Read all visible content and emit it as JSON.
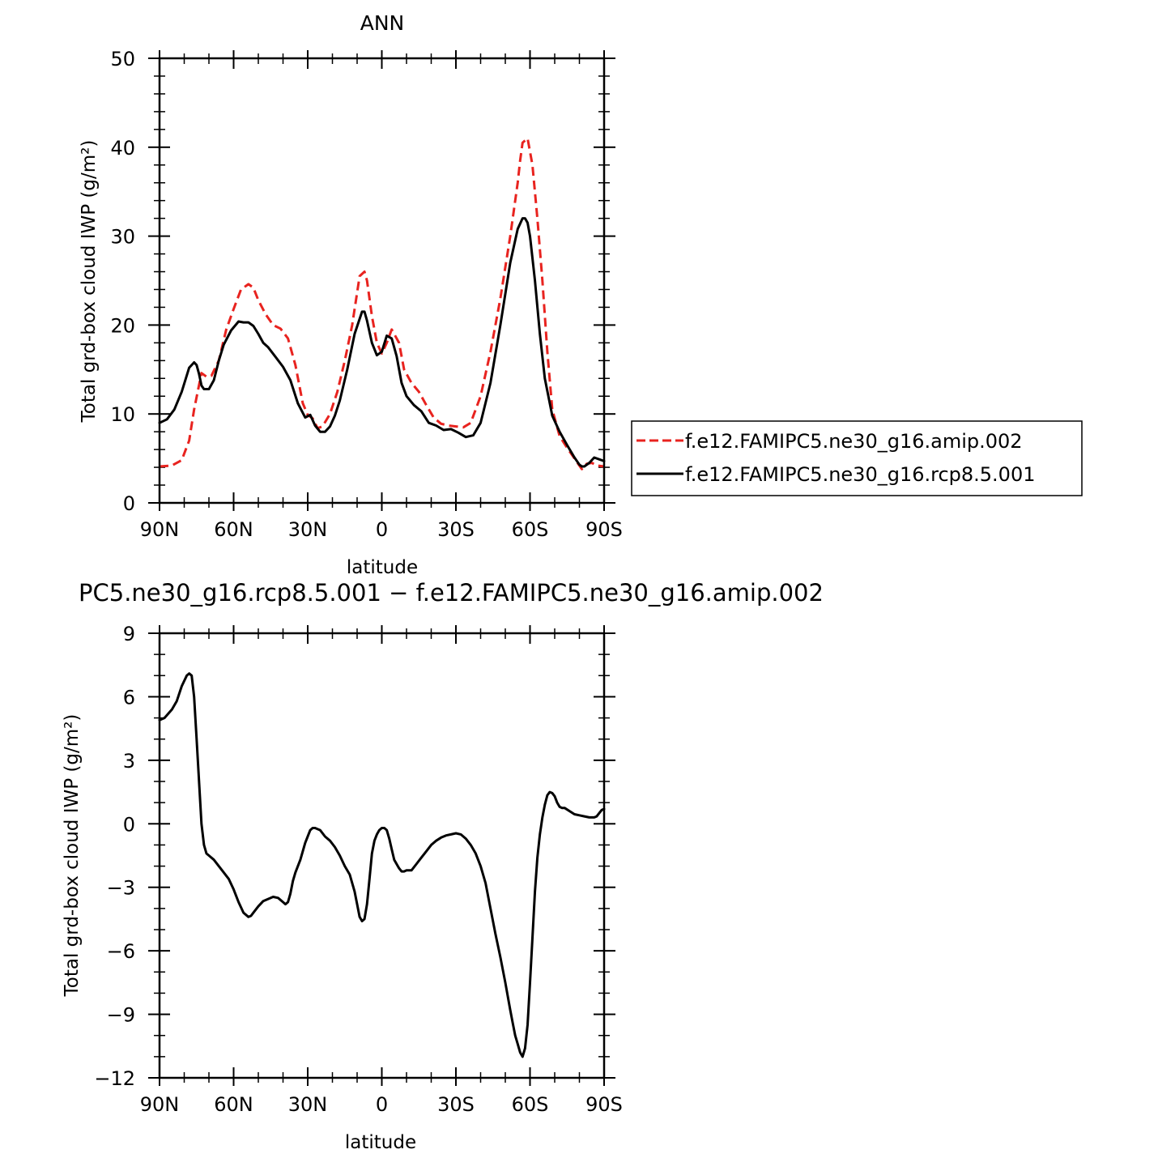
{
  "chart_data": [
    {
      "type": "line",
      "title": "ANN",
      "xlabel": "latitude",
      "ylabel": "Total grd-box cloud IWP (g/m²)",
      "xlim": [
        -90,
        90
      ],
      "ylim": [
        0,
        50
      ],
      "xticks": [
        -90,
        -60,
        -30,
        0,
        30,
        60,
        90
      ],
      "xtick_labels": [
        "90N",
        "60N",
        "30N",
        "0",
        "30S",
        "60S",
        "90S"
      ],
      "yticks": [
        0,
        10,
        20,
        30,
        40,
        50
      ],
      "ytick_labels": [
        "0",
        "10",
        "20",
        "30",
        "40",
        "50"
      ],
      "grid": false,
      "legend_position": "right",
      "series": [
        {
          "name": "f.e12.FAMIPC5.ne30_g16.amip.002",
          "color": "#e8231f",
          "dash": "dashed",
          "x": [
            -90,
            -85,
            -81,
            -78,
            -76,
            -73,
            -71,
            -69,
            -66,
            -63,
            -60,
            -57,
            -54,
            -52,
            -50,
            -47,
            -44,
            -41,
            -38,
            -35,
            -32,
            -30,
            -28,
            -26,
            -24,
            -21,
            -18,
            -15,
            -12,
            -9,
            -7,
            -6,
            -4,
            -2,
            0,
            2,
            4,
            5,
            7,
            9,
            12,
            15,
            18,
            21,
            24,
            27,
            30,
            33,
            36,
            40,
            44,
            48,
            52,
            55,
            56,
            57,
            59,
            61,
            63,
            65,
            67,
            69,
            72,
            75,
            78,
            81,
            83,
            85,
            87,
            90
          ],
          "y": [
            4.1,
            4.2,
            4.8,
            7.0,
            10.5,
            14.6,
            14.2,
            14.3,
            16.0,
            19.5,
            21.8,
            24.0,
            24.6,
            24.2,
            22.8,
            21.2,
            20.0,
            19.6,
            18.5,
            15.5,
            11.2,
            9.9,
            9.5,
            8.4,
            8.6,
            10.0,
            12.5,
            16.0,
            20.0,
            25.5,
            26.0,
            25.0,
            21.0,
            18.0,
            16.8,
            18.0,
            19.5,
            19.0,
            18.0,
            15.0,
            13.5,
            12.5,
            11.0,
            9.6,
            8.9,
            8.7,
            8.6,
            8.5,
            9.0,
            12.0,
            17.0,
            23.0,
            30.0,
            36.0,
            38.5,
            40.5,
            41.0,
            38.0,
            32.0,
            25.0,
            17.0,
            10.5,
            7.5,
            6.2,
            5.0,
            3.8,
            4.4,
            4.5,
            4.2,
            4.1
          ]
        },
        {
          "name": "f.e12.FAMIPC5.ne30_g16.rcp8.5.001",
          "color": "#000000",
          "dash": "solid",
          "x": [
            -90,
            -87,
            -84,
            -81,
            -78,
            -76,
            -75,
            -74,
            -73,
            -72,
            -70,
            -68,
            -66,
            -64,
            -61,
            -58,
            -56,
            -54,
            -52,
            -50,
            -48,
            -46,
            -43,
            -40,
            -37,
            -34,
            -31,
            -29,
            -27,
            -25,
            -23,
            -21,
            -19,
            -17,
            -14,
            -11,
            -8,
            -7,
            -6,
            -4,
            -2,
            0,
            2,
            4,
            6,
            8,
            10,
            13,
            16,
            19,
            22,
            25,
            28,
            31,
            34,
            37,
            40,
            44,
            48,
            52,
            55,
            57,
            58,
            59,
            60,
            62,
            64,
            66,
            69,
            72,
            75,
            78,
            80,
            81,
            82,
            84,
            86,
            88,
            90
          ],
          "y": [
            9.0,
            9.4,
            10.5,
            12.5,
            15.2,
            15.8,
            15.5,
            14.5,
            13.2,
            12.8,
            12.8,
            13.8,
            16.0,
            17.8,
            19.4,
            20.4,
            20.3,
            20.3,
            19.9,
            19.0,
            18.0,
            17.5,
            16.4,
            15.3,
            13.8,
            11.2,
            9.6,
            9.9,
            8.7,
            8.0,
            8.0,
            8.6,
            9.8,
            11.5,
            15.0,
            19.0,
            21.5,
            21.5,
            20.5,
            18.0,
            16.6,
            17.0,
            18.8,
            18.5,
            16.5,
            13.5,
            12.0,
            11.0,
            10.3,
            9.0,
            8.7,
            8.2,
            8.3,
            7.9,
            7.4,
            7.6,
            9.0,
            13.5,
            20.0,
            27.0,
            30.8,
            32.0,
            32.0,
            31.5,
            30.0,
            25.0,
            19.0,
            14.0,
            9.8,
            8.0,
            6.5,
            5.1,
            4.3,
            4.1,
            4.1,
            4.5,
            5.1,
            4.9,
            4.7
          ]
        }
      ]
    },
    {
      "type": "line",
      "title": "PC5.ne30_g16.rcp8.5.001 − f.e12.FAMIPC5.ne30_g16.amip.002",
      "xlabel": "latitude",
      "ylabel": "Total grd-box cloud IWP (g/m²)",
      "xlim": [
        -90,
        90
      ],
      "ylim": [
        -12,
        9
      ],
      "xticks": [
        -90,
        -60,
        -30,
        0,
        30,
        60,
        90
      ],
      "xtick_labels": [
        "90N",
        "60N",
        "30N",
        "0",
        "30S",
        "60S",
        "90S"
      ],
      "yticks": [
        -12,
        -9,
        -6,
        -3,
        0,
        3,
        6,
        9
      ],
      "ytick_labels": [
        "−12",
        "−9",
        "−6",
        "−3",
        "0",
        "3",
        "6",
        "9"
      ],
      "grid": false,
      "series": [
        {
          "name": "",
          "color": "#000000",
          "dash": "solid",
          "x": [
            -90,
            -88,
            -85,
            -83,
            -81,
            -79,
            -78,
            -77,
            -76,
            -75,
            -74,
            -73,
            -72,
            -71,
            -70,
            -68,
            -66,
            -64,
            -62,
            -60,
            -58,
            -56,
            -54,
            -53,
            -52,
            -50,
            -48,
            -46,
            -44,
            -42,
            -40,
            -39,
            -38,
            -37,
            -36,
            -35,
            -33,
            -31,
            -29,
            -28,
            -27,
            -25,
            -23,
            -21,
            -19,
            -17,
            -15,
            -13,
            -11,
            -10,
            -9,
            -8,
            -7,
            -6,
            -5,
            -4,
            -3,
            -2,
            -1,
            0,
            1,
            2,
            3,
            4,
            5,
            6,
            7,
            8,
            9,
            10,
            12,
            14,
            16,
            18,
            20,
            22,
            24,
            26,
            28,
            30,
            32,
            34,
            36,
            38,
            40,
            42,
            44,
            46,
            48,
            50,
            52,
            53,
            54,
            55,
            56,
            57,
            58,
            59,
            60,
            61,
            62,
            63,
            64,
            65,
            66,
            67,
            68,
            69,
            70,
            71,
            72,
            73,
            74,
            76,
            78,
            80,
            82,
            84,
            86,
            87,
            88,
            89,
            90
          ],
          "y": [
            4.9,
            5.0,
            5.4,
            5.8,
            6.5,
            7.0,
            7.1,
            7.0,
            6.0,
            4.0,
            2.0,
            0.0,
            -1.0,
            -1.4,
            -1.5,
            -1.7,
            -2.0,
            -2.3,
            -2.6,
            -3.1,
            -3.7,
            -4.2,
            -4.4,
            -4.35,
            -4.2,
            -3.9,
            -3.65,
            -3.55,
            -3.45,
            -3.5,
            -3.7,
            -3.8,
            -3.7,
            -3.3,
            -2.7,
            -2.3,
            -1.7,
            -0.9,
            -0.3,
            -0.2,
            -0.2,
            -0.3,
            -0.6,
            -0.8,
            -1.1,
            -1.5,
            -2.0,
            -2.4,
            -3.2,
            -3.8,
            -4.4,
            -4.6,
            -4.5,
            -3.8,
            -2.6,
            -1.4,
            -0.8,
            -0.5,
            -0.3,
            -0.2,
            -0.2,
            -0.3,
            -0.7,
            -1.2,
            -1.7,
            -1.9,
            -2.1,
            -2.25,
            -2.25,
            -2.2,
            -2.2,
            -1.9,
            -1.6,
            -1.3,
            -1.0,
            -0.8,
            -0.65,
            -0.55,
            -0.5,
            -0.45,
            -0.5,
            -0.7,
            -1.0,
            -1.4,
            -2.0,
            -2.8,
            -4.0,
            -5.2,
            -6.3,
            -7.5,
            -8.8,
            -9.4,
            -10.0,
            -10.4,
            -10.8,
            -11.0,
            -10.6,
            -9.5,
            -7.5,
            -5.4,
            -3.2,
            -1.6,
            -0.5,
            0.3,
            0.9,
            1.35,
            1.5,
            1.45,
            1.3,
            1.0,
            0.8,
            0.75,
            0.75,
            0.6,
            0.45,
            0.4,
            0.35,
            0.3,
            0.3,
            0.35,
            0.5,
            0.65,
            0.7
          ]
        }
      ]
    }
  ]
}
